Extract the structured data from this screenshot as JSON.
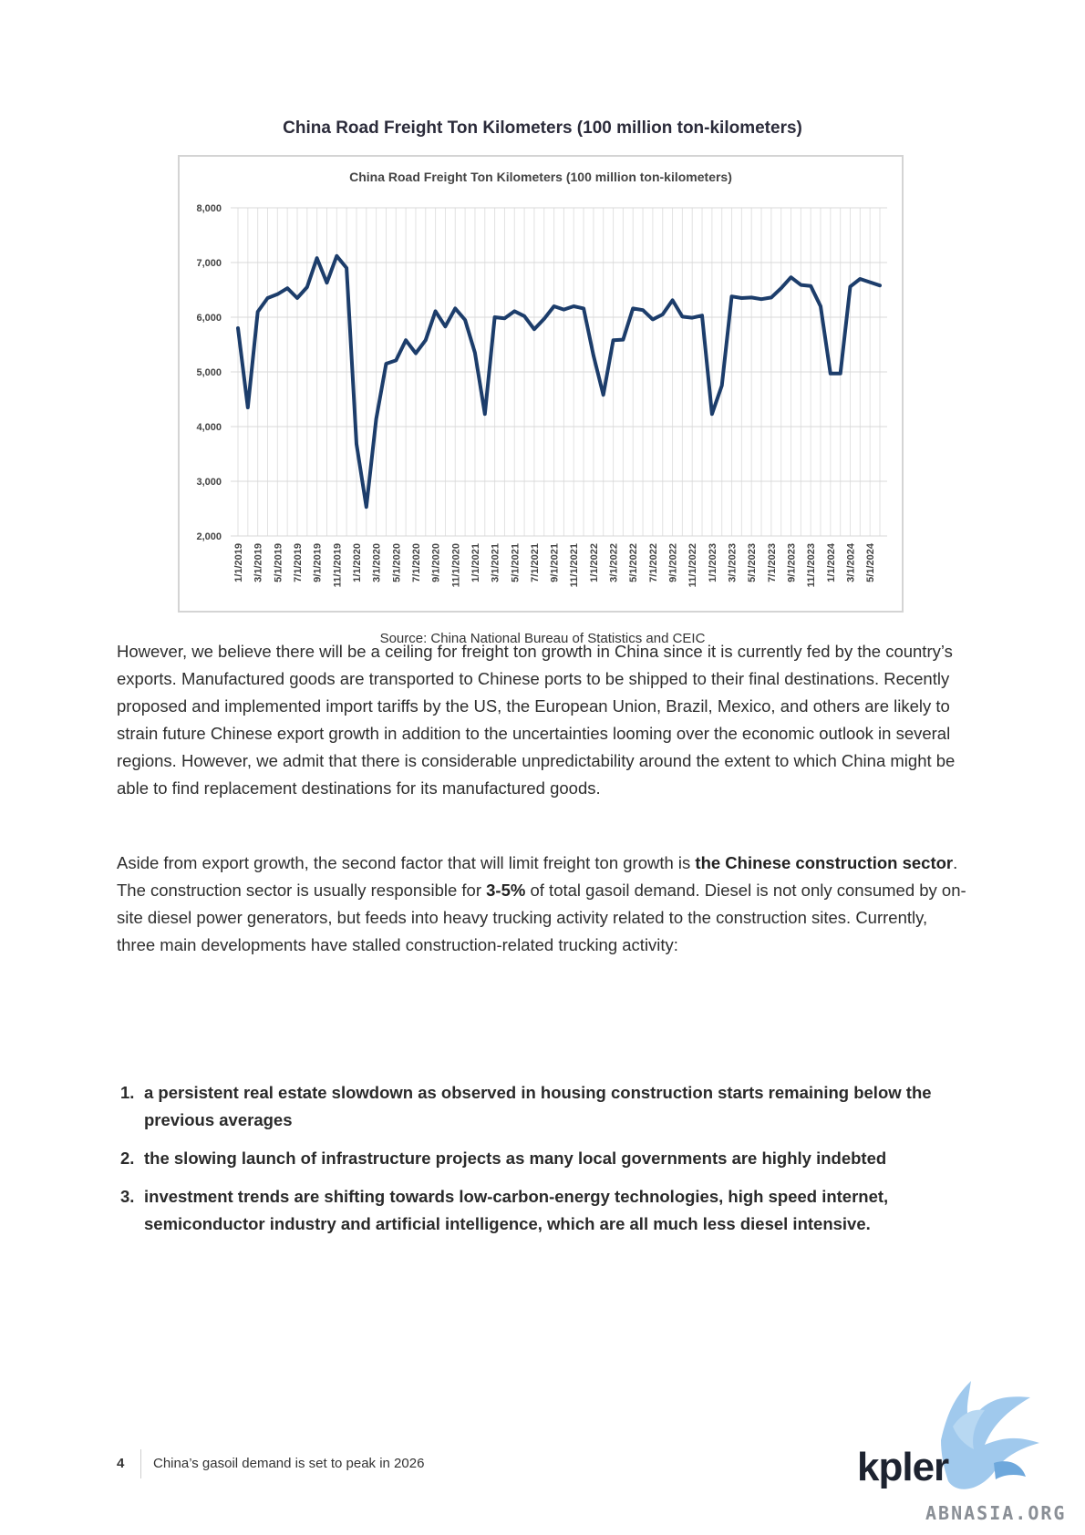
{
  "figure": {
    "title": "China Road Freight Ton Kilometers (100 million ton-kilometers)",
    "source": "Source: China National Bureau of Statistics and CEIC"
  },
  "chart_data": {
    "type": "line",
    "title": "China Road Freight Ton Kilometers (100 million ton-kilometers)",
    "xlabel": "",
    "ylabel": "",
    "ylim": [
      2000,
      8000
    ],
    "yticks": [
      2000,
      3000,
      4000,
      5000,
      6000,
      7000,
      8000
    ],
    "ytick_labels": [
      "2,000",
      "3,000",
      "4,000",
      "5,000",
      "6,000",
      "7,000",
      "8,000"
    ],
    "grid": true,
    "line_color": "#1c3d6b",
    "x": [
      "1/1/2019",
      "2/1/2019",
      "3/1/2019",
      "4/1/2019",
      "5/1/2019",
      "6/1/2019",
      "7/1/2019",
      "8/1/2019",
      "9/1/2019",
      "10/1/2019",
      "11/1/2019",
      "12/1/2019",
      "1/1/2020",
      "2/1/2020",
      "3/1/2020",
      "4/1/2020",
      "5/1/2020",
      "6/1/2020",
      "7/1/2020",
      "8/1/2020",
      "9/1/2020",
      "10/1/2020",
      "11/1/2020",
      "12/1/2020",
      "1/1/2021",
      "2/1/2021",
      "3/1/2021",
      "4/1/2021",
      "5/1/2021",
      "6/1/2021",
      "7/1/2021",
      "8/1/2021",
      "9/1/2021",
      "10/1/2021",
      "11/1/2021",
      "12/1/2021",
      "1/1/2022",
      "2/1/2022",
      "3/1/2022",
      "4/1/2022",
      "5/1/2022",
      "6/1/2022",
      "7/1/2022",
      "8/1/2022",
      "9/1/2022",
      "10/1/2022",
      "11/1/2022",
      "12/1/2022",
      "1/1/2023",
      "2/1/2023",
      "3/1/2023",
      "4/1/2023",
      "5/1/2023",
      "6/1/2023",
      "7/1/2023",
      "8/1/2023",
      "9/1/2023",
      "10/1/2023",
      "11/1/2023",
      "12/1/2023",
      "1/1/2024",
      "2/1/2024",
      "3/1/2024",
      "4/1/2024",
      "5/1/2024",
      "6/1/2024"
    ],
    "tick_labels": [
      "1/1/2019",
      "3/1/2019",
      "5/1/2019",
      "7/1/2019",
      "9/1/2019",
      "11/1/2019",
      "1/1/2020",
      "3/1/2020",
      "5/1/2020",
      "7/1/2020",
      "9/1/2020",
      "11/1/2020",
      "1/1/2021",
      "3/1/2021",
      "5/1/2021",
      "7/1/2021",
      "9/1/2021",
      "11/1/2021",
      "1/1/2022",
      "3/1/2022",
      "5/1/2022",
      "7/1/2022",
      "9/1/2022",
      "11/1/2022",
      "1/1/2023",
      "3/1/2023",
      "5/1/2023",
      "7/1/2023",
      "9/1/2023",
      "11/1/2023",
      "1/1/2024",
      "3/1/2024",
      "5/1/2024"
    ],
    "values": [
      5800,
      4350,
      6100,
      6350,
      6420,
      6530,
      6350,
      6550,
      7080,
      6630,
      7120,
      6900,
      3680,
      2530,
      4140,
      5150,
      5210,
      5580,
      5340,
      5580,
      6110,
      5830,
      6160,
      5950,
      5350,
      4230,
      6000,
      5980,
      6110,
      6020,
      5780,
      5970,
      6200,
      6140,
      6200,
      6160,
      5300,
      4580,
      5580,
      5590,
      6160,
      6130,
      5960,
      6050,
      6310,
      6010,
      5990,
      6030,
      4230,
      4750,
      6380,
      6350,
      6360,
      6330,
      6360,
      6530,
      6730,
      6590,
      6570,
      6200,
      4970,
      4970,
      6560,
      6700,
      6640,
      6580
    ]
  },
  "paragraphs": {
    "p1": "However, we believe there will be a ceiling for freight ton growth in China since it is currently fed by the country’s exports. Manufactured goods are transported to Chinese ports to be shipped to their final destinations. Recently proposed and implemented import tariffs by the US, the European Union, Brazil, Mexico, and others are likely to strain future Chinese export growth in addition to the uncertainties looming over the economic outlook in several regions. However, we admit that there is considerable unpredictability around the extent to which China might be able to find replacement destinations for its manufactured goods.",
    "p2_a": "Aside from export growth, the second factor that will limit freight ton growth is ",
    "p2_b": "the Chinese construction sector",
    "p2_c": ". The construction sector is usually responsible for ",
    "p2_d": "3-5%",
    "p2_e": " of total gasoil demand. Diesel is not only consumed by on-site diesel power generators, but feeds into heavy trucking activity related to the construction sites. Currently, three main developments have stalled construction-related trucking activity:"
  },
  "list": [
    {
      "num": "1.",
      "text": "a persistent real estate slowdown as observed in housing construction starts remaining below the previous averages"
    },
    {
      "num": "2.",
      "text": "the slowing launch of infrastructure projects as many local governments are highly indebted"
    },
    {
      "num": "3.",
      "text": "investment trends are shifting towards low-carbon-energy technologies, high speed internet, semiconductor industry and artificial intelligence, which are all much less diesel intensive."
    }
  ],
  "footer": {
    "page_number": "4",
    "doc_title": "China’s gasoil demand is set to peak in 2026"
  },
  "brand": {
    "logo": "kpler",
    "logo_icon": "griffin-icon",
    "watermark": "ABNASIA.ORG",
    "accent": "#6ea8dc"
  }
}
